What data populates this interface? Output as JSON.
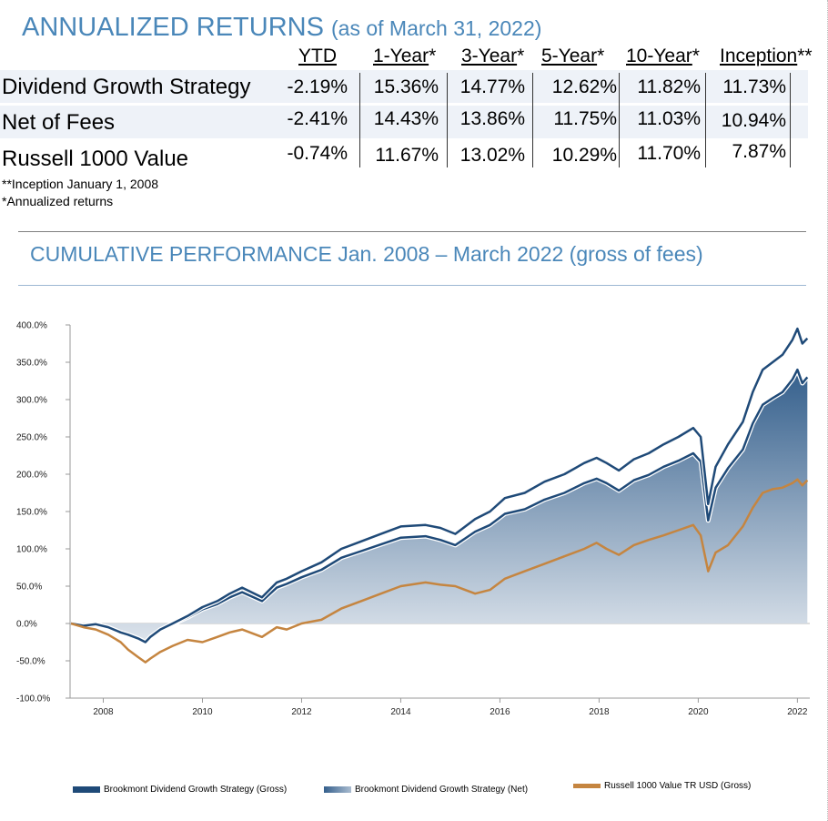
{
  "returns": {
    "title": "ANNUALIZED RETURNS",
    "subtitle": "(as of March 31, 2022)",
    "headers": [
      {
        "label": "YTD",
        "suffix": ""
      },
      {
        "label": "1-Year",
        "suffix": "*"
      },
      {
        "label": "3-Year",
        "suffix": "*"
      },
      {
        "label": "5-Year",
        "suffix": "*"
      },
      {
        "label": "10-Year",
        "suffix": "*"
      },
      {
        "label": "Inception",
        "suffix": "**"
      }
    ],
    "rows": [
      {
        "label": "Dividend Growth Strategy",
        "values": [
          "-2.19%",
          "15.36%",
          "14.77%",
          "12.62%",
          "11.82%",
          "11.73%"
        ]
      },
      {
        "label": "Net of Fees",
        "values": [
          "-2.41%",
          "14.43%",
          "13.86%",
          "11.75%",
          "11.03%",
          "10.94%"
        ]
      },
      {
        "label": "Russell 1000 Value",
        "values": [
          "-0.74%",
          "11.67%",
          "13.02%",
          "10.29%",
          "11.70%",
          "7.87%"
        ]
      }
    ],
    "footnotes": [
      "**Inception January 1, 2008",
      "*Annualized returns"
    ]
  },
  "performance": {
    "title": "CUMULATIVE PERFORMANCE Jan. 2008 – March 2022 (gross of fees)"
  },
  "colors": {
    "gross": "#1f4a78",
    "net_top": "#345f8c",
    "net_bottom": "#dde4ec",
    "russell": "#c58540",
    "title_blue": "#4a87b9"
  },
  "chart_data": {
    "type": "area",
    "title": "CUMULATIVE PERFORMANCE Jan. 2008 – March 2022 (gross of fees)",
    "xlabel": "",
    "ylabel": "",
    "xlim": [
      2007.33,
      2022.25
    ],
    "ylim": [
      -100,
      400
    ],
    "y_ticks": [
      400,
      350,
      300,
      250,
      200,
      150,
      100,
      50,
      0,
      -50,
      -100
    ],
    "y_tick_labels": [
      "400.0%",
      "350.0%",
      "300.0%",
      "250.0%",
      "200.0%",
      "150.0%",
      "100.0%",
      "50.0%",
      "0.0%",
      "-50.0%",
      "-100.0%"
    ],
    "x_ticks": [
      2008,
      2010,
      2012,
      2014,
      2016,
      2018,
      2020,
      2022
    ],
    "x_tick_labels": [
      "2008",
      "2010",
      "2012",
      "2014",
      "2016",
      "2018",
      "2020",
      "2022"
    ],
    "grid": false,
    "legend_position": "bottom",
    "series": [
      {
        "name": "Brookmont Dividend Growth Strategy (Gross)",
        "x": [
          2007.35,
          2007.6,
          2007.85,
          2008.1,
          2008.35,
          2008.5,
          2008.7,
          2008.85,
          2008.95,
          2009.15,
          2009.4,
          2009.7,
          2010.0,
          2010.3,
          2010.55,
          2010.8,
          2011.2,
          2011.5,
          2011.7,
          2012.0,
          2012.4,
          2012.8,
          2013.2,
          2013.6,
          2014.0,
          2014.5,
          2014.8,
          2015.1,
          2015.5,
          2015.8,
          2016.1,
          2016.5,
          2016.9,
          2017.3,
          2017.7,
          2017.95,
          2018.15,
          2018.4,
          2018.7,
          2019.0,
          2019.3,
          2019.6,
          2019.9,
          2020.05,
          2020.2,
          2020.35,
          2020.6,
          2020.9,
          2021.1,
          2021.3,
          2021.5,
          2021.7,
          2021.9,
          2022.0,
          2022.1,
          2022.2
        ],
        "values": [
          0,
          -3,
          -1,
          -5,
          -12,
          -15,
          -20,
          -25,
          -18,
          -8,
          0,
          10,
          22,
          30,
          40,
          48,
          35,
          55,
          60,
          70,
          82,
          100,
          110,
          120,
          130,
          132,
          128,
          120,
          140,
          150,
          168,
          175,
          190,
          200,
          215,
          222,
          215,
          205,
          220,
          228,
          240,
          250,
          262,
          250,
          160,
          210,
          240,
          270,
          310,
          340,
          350,
          360,
          380,
          395,
          375,
          382
        ]
      },
      {
        "name": "Brookmont Dividend Growth Strategy (Net)",
        "x": [
          2007.35,
          2007.6,
          2007.85,
          2008.1,
          2008.35,
          2008.5,
          2008.7,
          2008.85,
          2008.95,
          2009.15,
          2009.4,
          2009.7,
          2010.0,
          2010.3,
          2010.55,
          2010.8,
          2011.2,
          2011.5,
          2011.7,
          2012.0,
          2012.4,
          2012.8,
          2013.2,
          2013.6,
          2014.0,
          2014.5,
          2014.8,
          2015.1,
          2015.5,
          2015.8,
          2016.1,
          2016.5,
          2016.9,
          2017.3,
          2017.7,
          2017.95,
          2018.15,
          2018.4,
          2018.7,
          2019.0,
          2019.3,
          2019.6,
          2019.9,
          2020.05,
          2020.2,
          2020.35,
          2020.6,
          2020.9,
          2021.1,
          2021.3,
          2021.5,
          2021.7,
          2021.9,
          2022.0,
          2022.1,
          2022.2
        ],
        "values": [
          0,
          -3,
          -1,
          -5,
          -12,
          -15,
          -20,
          -25,
          -18,
          -9,
          -1,
          8,
          19,
          26,
          35,
          42,
          30,
          48,
          53,
          62,
          72,
          88,
          97,
          106,
          115,
          117,
          112,
          105,
          123,
          132,
          147,
          153,
          166,
          175,
          188,
          194,
          188,
          178,
          192,
          199,
          210,
          218,
          228,
          217,
          138,
          182,
          208,
          233,
          268,
          293,
          302,
          310,
          327,
          340,
          322,
          330
        ]
      },
      {
        "name": "Russell 1000 Value TR USD (Gross)",
        "x": [
          2007.35,
          2007.6,
          2007.85,
          2008.1,
          2008.35,
          2008.5,
          2008.7,
          2008.85,
          2008.95,
          2009.15,
          2009.4,
          2009.7,
          2010.0,
          2010.3,
          2010.55,
          2010.8,
          2011.2,
          2011.5,
          2011.7,
          2012.0,
          2012.4,
          2012.8,
          2013.2,
          2013.6,
          2014.0,
          2014.5,
          2014.8,
          2015.1,
          2015.5,
          2015.8,
          2016.1,
          2016.5,
          2016.9,
          2017.3,
          2017.7,
          2017.95,
          2018.15,
          2018.4,
          2018.7,
          2019.0,
          2019.3,
          2019.6,
          2019.9,
          2020.05,
          2020.2,
          2020.35,
          2020.6,
          2020.9,
          2021.1,
          2021.3,
          2021.5,
          2021.7,
          2021.9,
          2022.0,
          2022.1,
          2022.2
        ],
        "values": [
          0,
          -5,
          -8,
          -15,
          -25,
          -35,
          -45,
          -52,
          -47,
          -38,
          -30,
          -22,
          -25,
          -18,
          -12,
          -8,
          -18,
          -5,
          -8,
          0,
          5,
          20,
          30,
          40,
          50,
          55,
          52,
          50,
          40,
          45,
          60,
          70,
          80,
          90,
          100,
          108,
          100,
          92,
          105,
          112,
          118,
          125,
          132,
          118,
          70,
          95,
          105,
          130,
          155,
          175,
          180,
          182,
          188,
          193,
          185,
          192
        ]
      }
    ]
  },
  "legend": [
    {
      "label": "Brookmont Dividend Growth Strategy (Gross)"
    },
    {
      "label": "Brookmont Dividend Growth Strategy (Net)"
    },
    {
      "label": "Russell 1000 Value TR USD (Gross)"
    }
  ]
}
